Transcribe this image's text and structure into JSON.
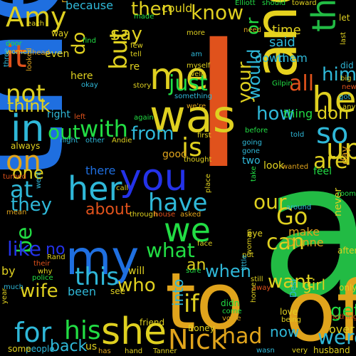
{
  "title": "",
  "background": "#000000",
  "words": [
    {
      "text": "the",
      "color": "#1f6fe0"
    },
    {
      "text": "I",
      "color": "#e0521c"
    },
    {
      "text": "a",
      "color": "#22bb44"
    },
    {
      "text": "and",
      "color": "#e6d21e"
    },
    {
      "text": "to",
      "color": "#e0a41c"
    },
    {
      "text": "of",
      "color": "#e0a41c"
    },
    {
      "text": "was",
      "color": "#dfd020"
    },
    {
      "text": "you",
      "color": "#2432e8"
    },
    {
      "text": "my",
      "color": "#1f6fe0"
    },
    {
      "text": "in",
      "color": "#2fb8d8"
    },
    {
      "text": "that",
      "color": "#22bb44"
    },
    {
      "text": "he",
      "color": "#dfd020"
    },
    {
      "text": "she",
      "color": "#dfd020"
    },
    {
      "text": "Nick",
      "color": "#e0a41c"
    },
    {
      "text": "we",
      "color": "#22dd44"
    },
    {
      "text": "it",
      "color": "#e0521c"
    },
    {
      "text": "her",
      "color": "#2fb8d8"
    },
    {
      "text": "me",
      "color": "#dfd020"
    },
    {
      "text": "so",
      "color": "#2fb8d8"
    },
    {
      "text": "up",
      "color": "#dfd020"
    },
    {
      "text": "Amy",
      "color": "#dfd020"
    },
    {
      "text": "his",
      "color": "#22dd44"
    },
    {
      "text": "for",
      "color": "#2fb8d8"
    },
    {
      "text": "with",
      "color": "#22dd44"
    },
    {
      "text": "have",
      "color": "#2fb8d8"
    },
    {
      "text": "is",
      "color": "#dfd020"
    },
    {
      "text": "not",
      "color": "#dfd020"
    },
    {
      "text": "on",
      "color": "#e0a41c"
    },
    {
      "text": "at",
      "color": "#2fb8d8"
    },
    {
      "text": "they",
      "color": "#2fb8d8"
    },
    {
      "text": "be",
      "color": "#22dd44"
    },
    {
      "text": "this",
      "color": "#2fb8d8"
    },
    {
      "text": "what",
      "color": "#22dd44"
    },
    {
      "text": "if",
      "color": "#dfd020"
    },
    {
      "text": "had",
      "color": "#e0a41c"
    },
    {
      "text": "were",
      "color": "#2fb8d8"
    },
    {
      "text": "can",
      "color": "#dfd020"
    },
    {
      "text": "our",
      "color": "#dfd020"
    },
    {
      "text": "Go",
      "color": "#dfd020"
    },
    {
      "text": "just",
      "color": "#22dd44"
    },
    {
      "text": "out",
      "color": "#22dd44"
    },
    {
      "text": "but",
      "color": "#dfd020"
    },
    {
      "text": "all",
      "color": "#e0521c"
    },
    {
      "text": "from",
      "color": "#2fb8d8"
    },
    {
      "text": "are",
      "color": "#dfd020"
    },
    {
      "text": "your",
      "color": "#dfd020"
    },
    {
      "text": "would",
      "color": "#2fb8d8"
    },
    {
      "text": "him",
      "color": "#2fb8d8"
    },
    {
      "text": "don",
      "color": "#dfd020"
    },
    {
      "text": "how",
      "color": "#2fb8d8"
    },
    {
      "text": "when",
      "color": "#2fb8d8"
    },
    {
      "text": "want",
      "color": "#dfd020"
    },
    {
      "text": "an",
      "color": "#dfd020"
    },
    {
      "text": "who",
      "color": "#dfd020"
    },
    {
      "text": "like",
      "color": "#2432e8"
    },
    {
      "text": "no",
      "color": "#2432e8"
    },
    {
      "text": "wife",
      "color": "#dfd020"
    },
    {
      "text": "one",
      "color": "#dfd020"
    },
    {
      "text": "about",
      "color": "#e0521c"
    },
    {
      "text": "know",
      "color": "#dfd020"
    },
    {
      "text": "then",
      "color": "#dfd020"
    },
    {
      "text": "do",
      "color": "#dfd020"
    },
    {
      "text": "say",
      "color": "#dfd020"
    },
    {
      "text": "think",
      "color": "#dfd020"
    },
    {
      "text": "or",
      "color": "#22dd44"
    },
    {
      "text": "get",
      "color": "#22dd44"
    },
    {
      "text": "girl",
      "color": "#dfd020"
    },
    {
      "text": "back",
      "color": "#2fb8d8"
    },
    {
      "text": "now",
      "color": "#2fb8d8"
    },
    {
      "text": "into",
      "color": "#2fb8d8"
    },
    {
      "text": "there",
      "color": "#1f6fe0"
    },
    {
      "text": "make",
      "color": "#e0a41c"
    },
    {
      "text": "Dunne",
      "color": "#e0a41c"
    },
    {
      "text": "been",
      "color": "#2fb8d8"
    },
    {
      "text": "thing",
      "color": "#22dd44"
    },
    {
      "text": "time",
      "color": "#dfd020"
    },
    {
      "text": "said",
      "color": "#2fb8d8"
    },
    {
      "text": "really",
      "color": "#e0a41c"
    },
    {
      "text": "because",
      "color": "#2fb8d8"
    },
    {
      "text": "could",
      "color": "#dfd020"
    },
    {
      "text": "them",
      "color": "#2fb8d8"
    },
    {
      "text": "down",
      "color": "#2fb8d8"
    },
    {
      "text": "here",
      "color": "#dfd020"
    },
    {
      "text": "right",
      "color": "#2fb8d8"
    },
    {
      "text": "good",
      "color": "#e0a41c"
    },
    {
      "text": "look",
      "color": "#dfd020"
    },
    {
      "text": "feel",
      "color": "#22dd44"
    },
    {
      "text": "day",
      "color": "#e0a41c"
    },
    {
      "text": "never",
      "color": "#dfd020"
    },
    {
      "text": "after",
      "color": "#dfd020"
    },
    {
      "text": "over",
      "color": "#dfd020"
    },
    {
      "text": "by",
      "color": "#dfd020"
    },
    {
      "text": "us",
      "color": "#dfd020"
    },
    {
      "text": "will",
      "color": "#dfd020"
    },
    {
      "text": "see",
      "color": "#dfd020"
    },
    {
      "text": "even",
      "color": "#dfd020"
    },
    {
      "text": "always",
      "color": "#dfd020"
    },
    {
      "text": "re",
      "color": "#dfd020"
    },
    {
      "text": "Elliott",
      "color": "#22dd44"
    },
    {
      "text": "should",
      "color": "#22dd44"
    },
    {
      "text": "toward",
      "color": "#dfd020"
    },
    {
      "text": "need",
      "color": "#e0a41c"
    },
    {
      "text": "made",
      "color": "#22dd44"
    },
    {
      "text": "find",
      "color": "#22dd44"
    },
    {
      "text": "few",
      "color": "#dfd020"
    },
    {
      "text": "tell",
      "color": "#dfd020"
    },
    {
      "text": "well",
      "color": "#dfd020"
    },
    {
      "text": "myself",
      "color": "#dfd020"
    },
    {
      "text": "more",
      "color": "#dfd020"
    },
    {
      "text": "am",
      "color": "#2fb8d8"
    },
    {
      "text": "story",
      "color": "#dfd020"
    },
    {
      "text": "okay",
      "color": "#2fb8d8"
    },
    {
      "text": "something",
      "color": "#2fb8d8"
    },
    {
      "text": "Gilpin",
      "color": "#22dd44"
    },
    {
      "text": "we're",
      "color": "#e0a41c"
    },
    {
      "text": "first",
      "color": "#dfd020"
    },
    {
      "text": "thought",
      "color": "#dfd020"
    },
    {
      "text": "other",
      "color": "#2fb8d8"
    },
    {
      "text": "Andie",
      "color": "#dfd020"
    },
    {
      "text": "night",
      "color": "#2fb8d8"
    },
    {
      "text": "left",
      "color": "#e0521c"
    },
    {
      "text": "again",
      "color": "#22dd44"
    },
    {
      "text": "going",
      "color": "#2fb8d8"
    },
    {
      "text": "gone",
      "color": "#2fb8d8"
    },
    {
      "text": "two",
      "color": "#2fb8d8"
    },
    {
      "text": "wanted",
      "color": "#e0a41c"
    },
    {
      "text": "before",
      "color": "#22dd44"
    },
    {
      "text": "told",
      "color": "#2fb8d8"
    },
    {
      "text": "take",
      "color": "#22dd44"
    },
    {
      "text": "around",
      "color": "#2fb8d8"
    },
    {
      "text": "eye",
      "color": "#dfd020"
    },
    {
      "text": "room",
      "color": "#22dd44"
    },
    {
      "text": "face",
      "color": "#dfd020"
    },
    {
      "text": "woman",
      "color": "#dfd020"
    },
    {
      "text": "put",
      "color": "#dfd020"
    },
    {
      "text": "still",
      "color": "#dfd020"
    },
    {
      "text": "little",
      "color": "#2fb8d8"
    },
    {
      "text": "away",
      "color": "#e0521c"
    },
    {
      "text": "only",
      "color": "#dfd020"
    },
    {
      "text": "home",
      "color": "#dfd020"
    },
    {
      "text": "Desi",
      "color": "#2fb8d8"
    },
    {
      "text": "love",
      "color": "#dfd020"
    },
    {
      "text": "being",
      "color": "#dfd020"
    },
    {
      "text": "nothing",
      "color": "#e0521c"
    },
    {
      "text": "husband",
      "color": "#dfd020"
    },
    {
      "text": "wasn",
      "color": "#2fb8d8"
    },
    {
      "text": "very",
      "color": "#dfd020"
    },
    {
      "text": "come",
      "color": "#22dd44"
    },
    {
      "text": "voice",
      "color": "#e0a41c"
    },
    {
      "text": "Boney",
      "color": "#dfd020"
    },
    {
      "text": "friend",
      "color": "#dfd020"
    },
    {
      "text": "Tanner",
      "color": "#dfd020"
    },
    {
      "text": "hand",
      "color": "#dfd020"
    },
    {
      "text": "has",
      "color": "#e0a41c"
    },
    {
      "text": "people",
      "color": "#2fb8d8"
    },
    {
      "text": "some",
      "color": "#dfd020"
    },
    {
      "text": "year",
      "color": "#dfd020"
    },
    {
      "text": "much",
      "color": "#2fb8d8"
    },
    {
      "text": "police",
      "color": "#22dd44"
    },
    {
      "text": "why",
      "color": "#dfd020"
    },
    {
      "text": "their",
      "color": "#e0521c"
    },
    {
      "text": "Rand",
      "color": "#dfd020"
    },
    {
      "text": "mean",
      "color": "#e0a41c"
    },
    {
      "text": "went",
      "color": "#2fb8d8"
    },
    {
      "text": "turned",
      "color": "#e0521c"
    },
    {
      "text": "through",
      "color": "#dfd020"
    },
    {
      "text": "house",
      "color": "#e0521c"
    },
    {
      "text": "asked",
      "color": "#e0a41c"
    },
    {
      "text": "call",
      "color": "#dfd020"
    },
    {
      "text": "place",
      "color": "#dfd020"
    },
    {
      "text": "sure",
      "color": "#22dd44"
    },
    {
      "text": "didn",
      "color": "#22dd44"
    },
    {
      "text": "door",
      "color": "#22dd44"
    },
    {
      "text": "each",
      "color": "#dfd020"
    },
    {
      "text": "women",
      "color": "#dfd020"
    },
    {
      "text": "way",
      "color": "#dfd020"
    },
    {
      "text": "head",
      "color": "#e0a41c"
    },
    {
      "text": "three",
      "color": "#2fb8d8"
    },
    {
      "text": "looked",
      "color": "#e0a41c"
    },
    {
      "text": "did",
      "color": "#2fb8d8"
    },
    {
      "text": "last",
      "color": "#dfd020"
    },
    {
      "text": "let",
      "color": "#dfd020"
    },
    {
      "text": "big",
      "color": "#dfd020"
    },
    {
      "text": "got",
      "color": "#2fb8d8"
    },
    {
      "text": "new",
      "color": "#e0521c"
    },
    {
      "text": "any",
      "color": "#dfd020"
    }
  ]
}
